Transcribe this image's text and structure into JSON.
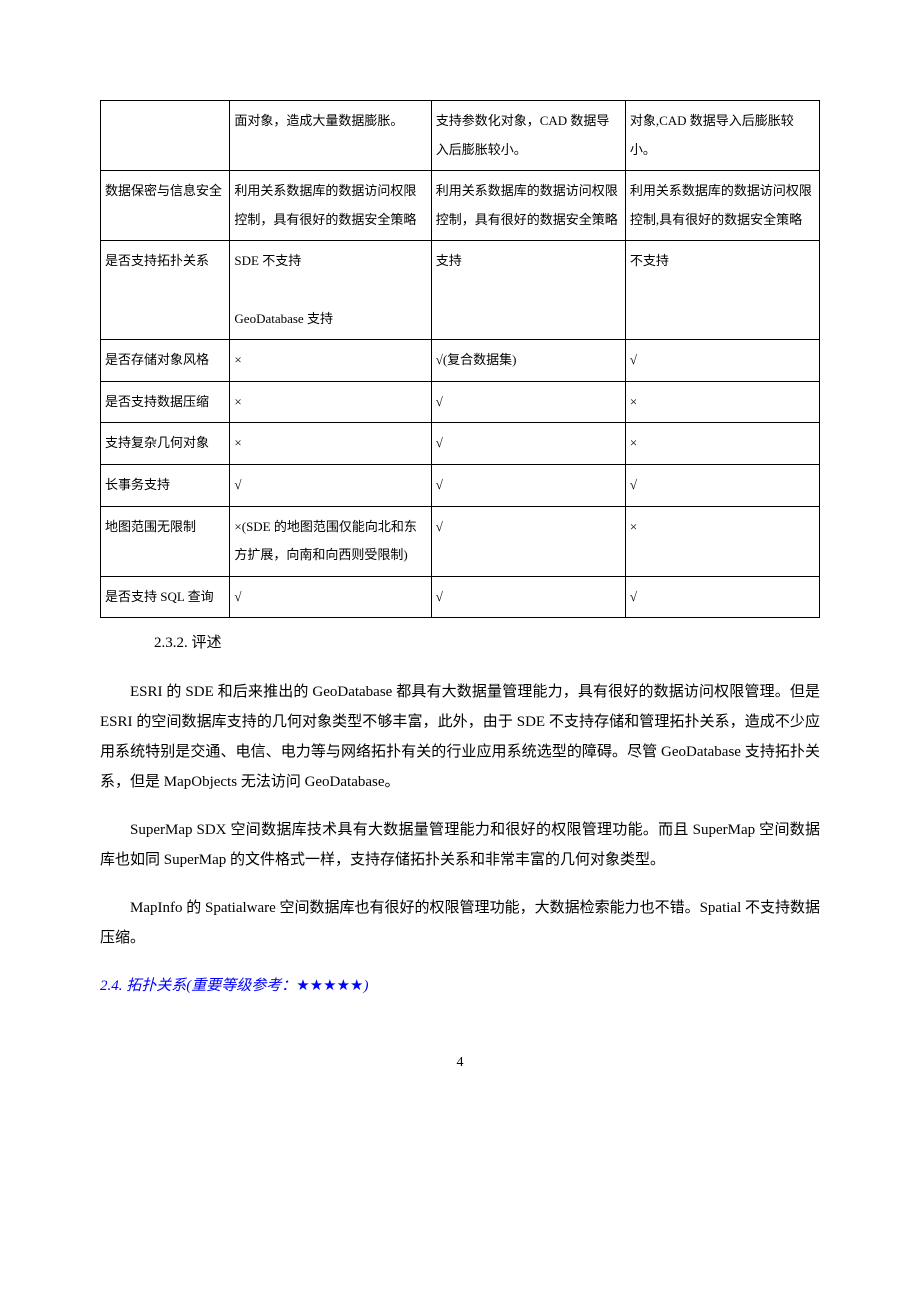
{
  "table": {
    "type": "table",
    "border_color": "#000000",
    "columns": [
      {
        "width": "18%"
      },
      {
        "width": "28%"
      },
      {
        "width": "27%"
      },
      {
        "width": "27%"
      }
    ],
    "rows": [
      [
        "",
        "面对象，造成大量数据膨胀。",
        "支持参数化对象，CAD 数据导入后膨胀较小。",
        "对象,CAD 数据导入后膨胀较小。"
      ],
      [
        "数据保密与信息安全",
        "利用关系数据库的数据访问权限控制，具有很好的数据安全策略",
        "利用关系数据库的数据访问权限控制，具有很好的数据安全策略",
        "利用关系数据库的数据访问权限控制,具有很好的数据安全策略"
      ],
      [
        "是否支持拓扑关系",
        "SDE 不支持\n\nGeoDatabase 支持",
        "支持",
        "不支持"
      ],
      [
        "是否存储对象风格",
        "×",
        "√(复合数据集)",
        "√"
      ],
      [
        "是否支持数据压缩",
        "×",
        "√",
        "×"
      ],
      [
        "支持复杂几何对象",
        "×",
        "√",
        "×"
      ],
      [
        "长事务支持",
        "√",
        "√",
        "√"
      ],
      [
        "地图范围无限制",
        "×(SDE 的地图范围仅能向北和东方扩展，向南和向西则受限制)",
        "√",
        "×"
      ],
      [
        "是否支持 SQL 查询",
        "√",
        "√",
        "√"
      ]
    ]
  },
  "section_232": "2.3.2. 评述",
  "paragraph1": "ESRI 的 SDE 和后来推出的 GeoDatabase 都具有大数据量管理能力，具有很好的数据访问权限管理。但是 ESRI 的空间数据库支持的几何对象类型不够丰富，此外，由于 SDE 不支持存储和管理拓扑关系，造成不少应用系统特别是交通、电信、电力等与网络拓扑有关的行业应用系统选型的障碍。尽管 GeoDatabase 支持拓扑关系，但是 MapObjects 无法访问 GeoDatabase。",
  "paragraph2": "SuperMap SDX 空间数据库技术具有大数据量管理能力和很好的权限管理功能。而且 SuperMap 空间数据库也如同 SuperMap 的文件格式一样，支持存储拓扑关系和非常丰富的几何对象类型。",
  "paragraph3": "MapInfo 的 Spatialware 空间数据库也有很好的权限管理功能，大数据检索能力也不错。Spatial 不支持数据压缩。",
  "section_24_prefix": "2.4. 拓扑关系(重要等级参考：",
  "section_24_stars": "★★★★★",
  "section_24_suffix": ")",
  "page_number": "4",
  "colors": {
    "text": "#000000",
    "link_heading": "#0000ff",
    "background": "#ffffff",
    "border": "#000000"
  },
  "fonts": {
    "body_family": "SimSun",
    "body_size": 14,
    "table_size": 13,
    "paragraph_size": 15,
    "heading_size": 15
  }
}
